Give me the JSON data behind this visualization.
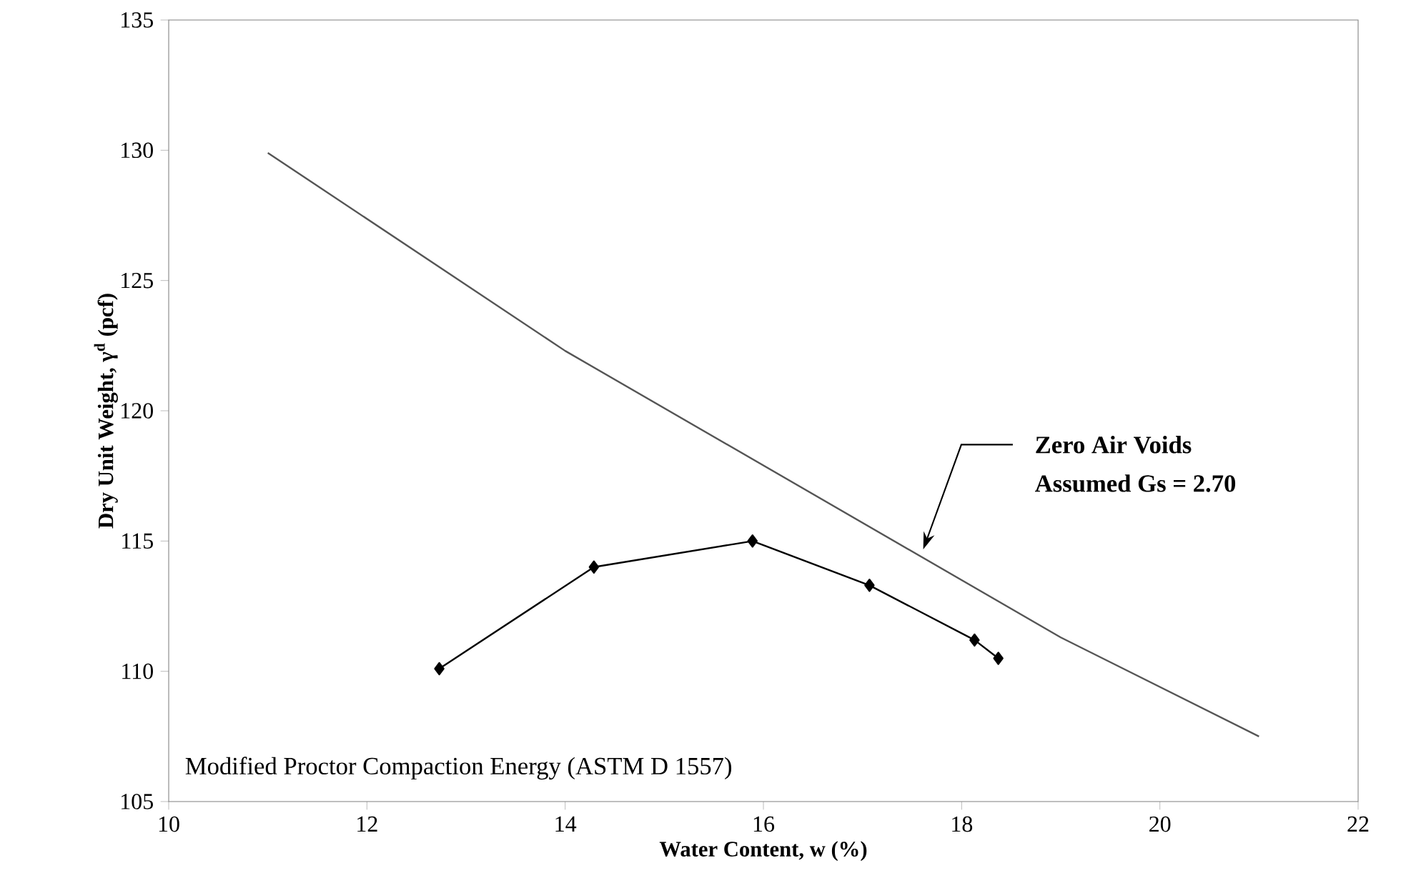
{
  "chart_data": {
    "type": "line",
    "xlabel": "Water Content, w (%)",
    "ylabel": "Dry Unit Weight, γ$^{d}$ (pcf)",
    "xlim": [
      10,
      22
    ],
    "ylim": [
      105,
      135
    ],
    "xticks": [
      10,
      12,
      14,
      16,
      18,
      20,
      22
    ],
    "yticks": [
      105,
      110,
      115,
      120,
      125,
      130,
      135
    ],
    "grid": false,
    "series": [
      {
        "color": "#000000",
        "marker": "diamond",
        "x": [
          12.73,
          14.29,
          15.89,
          17.07,
          18.13,
          18.37
        ],
        "values": [
          110.1,
          114.0,
          115.0,
          113.3,
          111.2,
          110.5
        ]
      },
      {
        "color": "#555555",
        "marker": "none",
        "x": [
          11,
          14,
          19,
          21
        ],
        "values": [
          129.9,
          122.3,
          111.3,
          107.5
        ]
      }
    ],
    "annotations": [
      "Zero Air Voids",
      "Assumed Gs = 2.70",
      "Modified Proctor Compaction Energy (ASTM D 1557)"
    ]
  }
}
